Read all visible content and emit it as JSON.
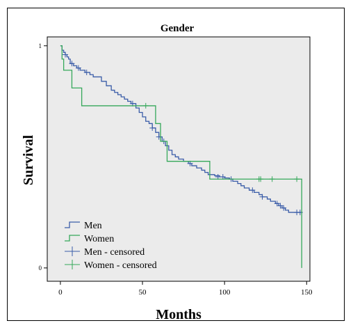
{
  "chart_data": {
    "type": "line",
    "title": "Gender",
    "xlabel": "Months",
    "ylabel": "Survival",
    "xlim": [
      -8,
      152
    ],
    "ylim": [
      -0.06,
      1.04
    ],
    "xticks": [
      "0",
      "50",
      "100",
      "150"
    ],
    "xtick_values": [
      0,
      50,
      100,
      150
    ],
    "yticks": [
      "0",
      "1"
    ],
    "ytick_values": [
      0,
      1
    ],
    "grid": false,
    "legend_position": "bottom-left",
    "plot_background": "#ebebeb",
    "series": [
      {
        "name": "Men",
        "color": "#3a5ca8",
        "step": [
          [
            0,
            1.0
          ],
          [
            1,
            0.98
          ],
          [
            2,
            0.97
          ],
          [
            3,
            0.96
          ],
          [
            4,
            0.95
          ],
          [
            5,
            0.94
          ],
          [
            6,
            0.92
          ],
          [
            8,
            0.91
          ],
          [
            10,
            0.9
          ],
          [
            12,
            0.89
          ],
          [
            15,
            0.88
          ],
          [
            18,
            0.87
          ],
          [
            20,
            0.86
          ],
          [
            25,
            0.84
          ],
          [
            28,
            0.82
          ],
          [
            31,
            0.8
          ],
          [
            33,
            0.79
          ],
          [
            35,
            0.78
          ],
          [
            37,
            0.77
          ],
          [
            39,
            0.76
          ],
          [
            41,
            0.75
          ],
          [
            43,
            0.74
          ],
          [
            46,
            0.72
          ],
          [
            48,
            0.7
          ],
          [
            50,
            0.68
          ],
          [
            52,
            0.66
          ],
          [
            54,
            0.65
          ],
          [
            56,
            0.63
          ],
          [
            58,
            0.61
          ],
          [
            60,
            0.59
          ],
          [
            62,
            0.57
          ],
          [
            64,
            0.55
          ],
          [
            66,
            0.53
          ],
          [
            68,
            0.51
          ],
          [
            70,
            0.5
          ],
          [
            72,
            0.49
          ],
          [
            75,
            0.48
          ],
          [
            78,
            0.47
          ],
          [
            80,
            0.46
          ],
          [
            83,
            0.45
          ],
          [
            86,
            0.44
          ],
          [
            88,
            0.43
          ],
          [
            90,
            0.42
          ],
          [
            94,
            0.415
          ],
          [
            97,
            0.41
          ],
          [
            100,
            0.405
          ],
          [
            103,
            0.4
          ],
          [
            105,
            0.39
          ],
          [
            108,
            0.38
          ],
          [
            110,
            0.37
          ],
          [
            112,
            0.36
          ],
          [
            115,
            0.35
          ],
          [
            118,
            0.34
          ],
          [
            121,
            0.33
          ],
          [
            123,
            0.32
          ],
          [
            126,
            0.31
          ],
          [
            128,
            0.3
          ],
          [
            131,
            0.29
          ],
          [
            133,
            0.28
          ],
          [
            135,
            0.27
          ],
          [
            137,
            0.26
          ],
          [
            139,
            0.25
          ],
          [
            143,
            0.25
          ],
          [
            147,
            0.25
          ]
        ],
        "censored": [
          [
            3,
            0.96
          ],
          [
            7,
            0.92
          ],
          [
            11,
            0.9
          ],
          [
            16,
            0.88
          ],
          [
            44,
            0.74
          ],
          [
            56,
            0.63
          ],
          [
            60,
            0.59
          ],
          [
            63,
            0.57
          ],
          [
            79,
            0.47
          ],
          [
            96,
            0.41
          ],
          [
            99,
            0.41
          ],
          [
            104,
            0.4
          ],
          [
            117,
            0.35
          ],
          [
            123,
            0.32
          ],
          [
            132,
            0.29
          ],
          [
            134,
            0.28
          ],
          [
            136,
            0.27
          ],
          [
            144,
            0.25
          ],
          [
            146,
            0.25
          ]
        ]
      },
      {
        "name": "Women",
        "color": "#35a85a",
        "step": [
          [
            0,
            1.0
          ],
          [
            1,
            0.94
          ],
          [
            2,
            0.89
          ],
          [
            7,
            0.89
          ],
          [
            7,
            0.81
          ],
          [
            13,
            0.81
          ],
          [
            13,
            0.73
          ],
          [
            58,
            0.73
          ],
          [
            58,
            0.65
          ],
          [
            61,
            0.65
          ],
          [
            61,
            0.57
          ],
          [
            65,
            0.57
          ],
          [
            65,
            0.48
          ],
          [
            91,
            0.48
          ],
          [
            91,
            0.4
          ],
          [
            147,
            0.4
          ],
          [
            147,
            0.0
          ]
        ],
        "censored": [
          [
            52,
            0.73
          ],
          [
            121,
            0.4
          ],
          [
            122,
            0.4
          ],
          [
            129,
            0.4
          ],
          [
            144,
            0.4
          ]
        ]
      }
    ],
    "legend": [
      {
        "label": "Men",
        "symbol": "step",
        "color": "#3a5ca8"
      },
      {
        "label": "Women",
        "symbol": "step",
        "color": "#35a85a"
      },
      {
        "label": "Men - censored",
        "symbol": "cross",
        "color": "#3a5ca8"
      },
      {
        "label": "Women - censored",
        "symbol": "cross",
        "color": "#35a85a"
      }
    ]
  }
}
